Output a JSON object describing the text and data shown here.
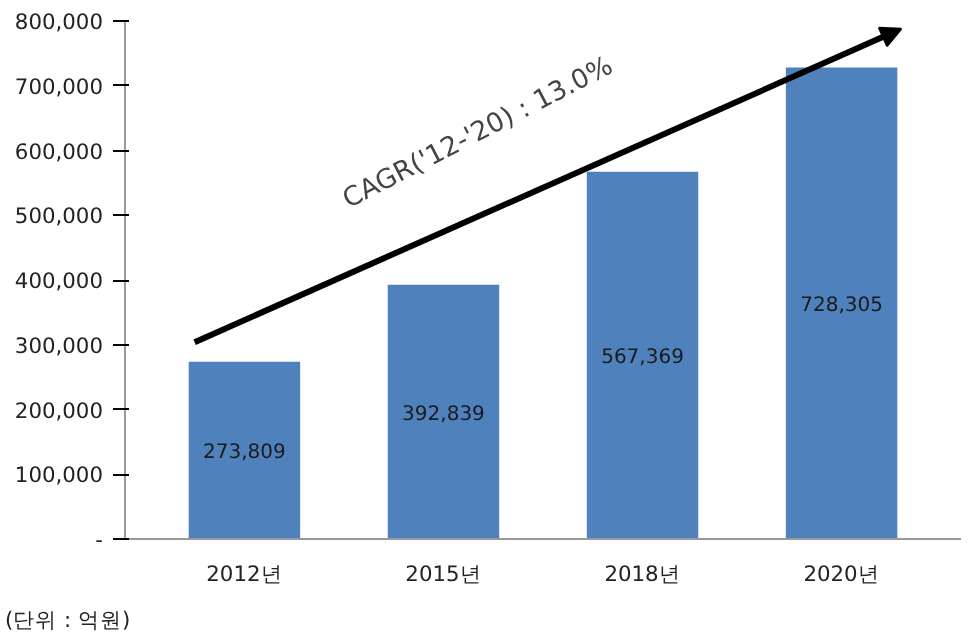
{
  "chart_data": {
    "type": "bar",
    "categories": [
      "2012년",
      "2015년",
      "2018년",
      "2020년"
    ],
    "values": [
      273809,
      392839,
      567369,
      728305
    ],
    "color": "#4f81bd",
    "data_labels": true,
    "value_labels": [
      "273,809",
      "392,839",
      "567,369",
      "728,305"
    ],
    "ylim": [
      0,
      800000
    ],
    "yticks": [
      {
        "value": 0,
        "label": "-"
      },
      {
        "value": 100000,
        "label": "100,000"
      },
      {
        "value": 200000,
        "label": "200,000"
      },
      {
        "value": 300000,
        "label": "300,000"
      },
      {
        "value": 400000,
        "label": "400,000"
      },
      {
        "value": 500000,
        "label": "500,000"
      },
      {
        "value": 600000,
        "label": "600,000"
      },
      {
        "value": 700000,
        "label": "700,000"
      },
      {
        "value": 800000,
        "label": "800,000"
      }
    ],
    "grid": false,
    "annotations": [
      "CAGR('12-'20) : 13.0%",
      "(단위 : 억원)"
    ]
  }
}
